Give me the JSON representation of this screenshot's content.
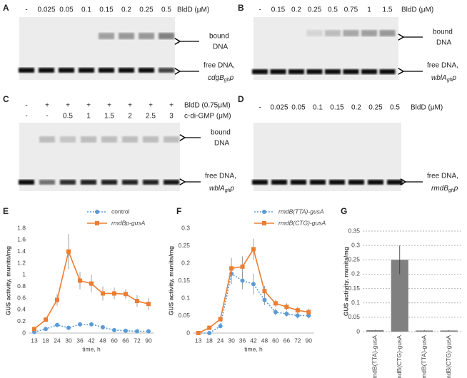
{
  "gels": [
    {
      "panel": "A",
      "header_rows": [
        {
          "labels": [
            "-",
            "0.025",
            "0.05",
            "0.1",
            "0.15",
            "0.2",
            "0.25",
            "0.5"
          ],
          "title": "BldD (μM)"
        }
      ],
      "bound_label": [
        "bound",
        "DNA"
      ],
      "free_label": "free DNA,",
      "gene": {
        "name": "cdgB",
        "sub": "gh",
        "suffix": "p"
      }
    },
    {
      "panel": "B",
      "header_rows": [
        {
          "labels": [
            "-",
            "0.15",
            "0.2",
            "0.25",
            "0.5",
            "0.75",
            "1",
            "1.5"
          ],
          "title": "BldD (μM)"
        }
      ],
      "bound_label": [
        "bound",
        "DNA"
      ],
      "free_label": "free DNA,",
      "gene": {
        "name": "wblA",
        "sub": "gh",
        "suffix": "p"
      }
    },
    {
      "panel": "C",
      "header_rows": [
        {
          "labels": [
            "-",
            "+",
            "+",
            "+",
            "+",
            "+",
            "+",
            "+"
          ],
          "title": "BldD (0.75μM)"
        },
        {
          "labels": [
            "-",
            "-",
            "0.5",
            "1",
            "1.5",
            "2",
            "2.5",
            "3"
          ],
          "title": "c-di-GMP (μM)"
        }
      ],
      "bound_label": [
        "bound",
        "DNA"
      ],
      "free_label": "free DNA,",
      "gene": {
        "name": "wblA",
        "sub": "gh",
        "suffix": "p"
      }
    },
    {
      "panel": "D",
      "header_rows": [
        {
          "labels": [
            "-",
            "0.025",
            "0.05",
            "0.1",
            "0.15",
            "0.2",
            "0.25",
            "0.5"
          ],
          "title": "BldD (μM)"
        }
      ],
      "free_label": "free DNA,",
      "gene": {
        "name": "rmdB",
        "sub": "gh",
        "suffix": "p"
      }
    }
  ],
  "chart_data": [
    {
      "type": "line",
      "panel": "E",
      "y_label": "GUS activity, munits/mg",
      "x_label": "time, h",
      "categories": [
        13,
        18,
        24,
        30,
        36,
        42,
        48,
        60,
        66,
        72,
        90
      ],
      "ylim": [
        0,
        1.8
      ],
      "yticks": [
        0,
        0.2,
        0.4,
        0.6,
        0.8,
        1,
        1.2,
        1.4,
        1.6,
        1.8
      ],
      "grid": false,
      "legend": "top",
      "series": [
        {
          "name": "control",
          "color": "#5b9bd5",
          "marker": "circle",
          "linestyle": "dotted",
          "values": [
            0.02,
            0.07,
            0.14,
            0.09,
            0.15,
            0.15,
            0.1,
            0.05,
            0.04,
            0.03,
            0.03
          ],
          "errors": [
            0.01,
            0.01,
            0.02,
            0.02,
            0.02,
            0.02,
            0.02,
            0.01,
            0.01,
            0.01,
            0.01
          ]
        },
        {
          "name": "rmdBp-gusA",
          "color": "#ed7d31",
          "marker": "square",
          "linestyle": "solid",
          "values": [
            0.07,
            0.23,
            0.57,
            1.4,
            0.9,
            0.85,
            0.68,
            0.68,
            0.67,
            0.55,
            0.5
          ],
          "errors": [
            0.03,
            0.04,
            0.1,
            0.3,
            0.15,
            0.15,
            0.12,
            0.1,
            0.08,
            0.1,
            0.1
          ]
        }
      ]
    },
    {
      "type": "line",
      "panel": "F",
      "y_label": "GUS activity, munits/mg",
      "x_label": "time, h",
      "categories": [
        13,
        18,
        24,
        30,
        36,
        42,
        48,
        60,
        66,
        72,
        90
      ],
      "ylim": [
        0,
        0.3
      ],
      "yticks": [
        0,
        0.05,
        0.1,
        0.15,
        0.2,
        0.25,
        0.3
      ],
      "grid": false,
      "legend": "top",
      "series": [
        {
          "name": "rmdB(TTA)-gusA",
          "color": "#5b9bd5",
          "marker": "circle",
          "linestyle": "dotted",
          "values": [
            0,
            0,
            0.02,
            0.17,
            0.15,
            0.14,
            0.095,
            0.06,
            0.055,
            0.05,
            0.05
          ],
          "errors": [
            0,
            0.003,
            0.005,
            0.03,
            0.025,
            0.03,
            0.015,
            0.01,
            0.008,
            0.008,
            0.008
          ]
        },
        {
          "name": "rmdB(CTG)-gusA",
          "color": "#ed7d31",
          "marker": "square",
          "linestyle": "solid",
          "values": [
            0,
            0.015,
            0.04,
            0.185,
            0.19,
            0.24,
            0.12,
            0.085,
            0.075,
            0.065,
            0.06
          ],
          "errors": [
            0,
            0.005,
            0.007,
            0.03,
            0.03,
            0.03,
            0.015,
            0.01,
            0.01,
            0.01,
            0.01
          ]
        }
      ]
    },
    {
      "type": "bar",
      "panel": "G",
      "y_label": "GUS activity, munits/mg",
      "categories": [
        "rmdB(TTA)-gusA",
        "rmdB(CTG)-gusA",
        "C rmdB(TTA)-gusA",
        "C rmdB(CTG)-gusA"
      ],
      "values": [
        0.005,
        0.25,
        0.004,
        0.004
      ],
      "errors": [
        0.001,
        0.05,
        0.001,
        0.001
      ],
      "color": "#808080",
      "ylim": [
        0,
        0.35
      ],
      "yticks": [
        0,
        0.05,
        0.1,
        0.15,
        0.2,
        0.25,
        0.3,
        0.35
      ],
      "grid": true
    }
  ]
}
